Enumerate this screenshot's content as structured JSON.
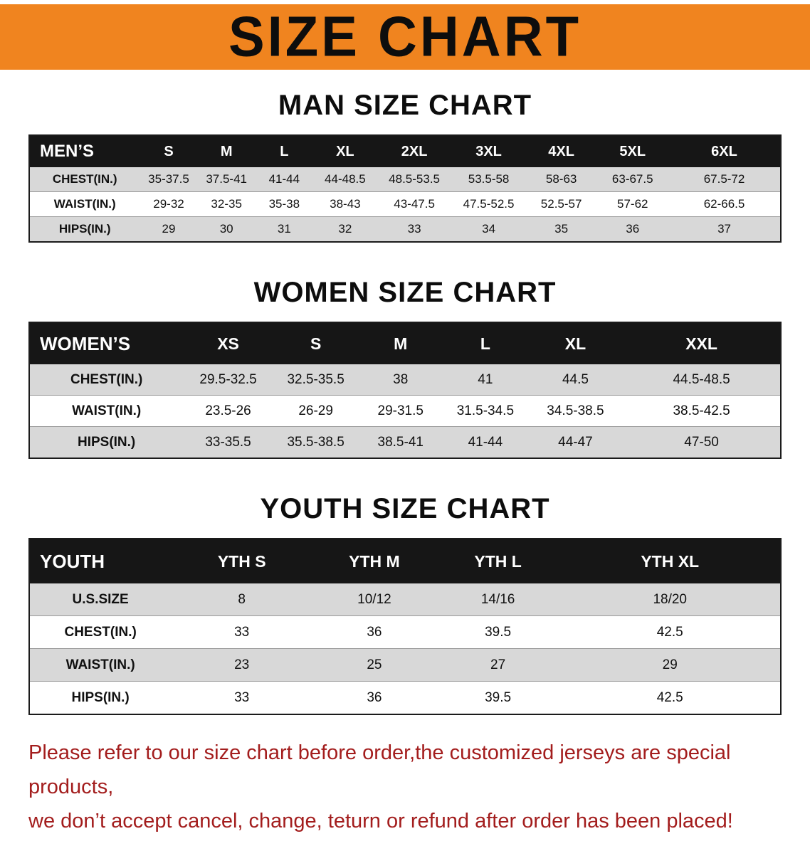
{
  "banner": {
    "title": "SIZE CHART",
    "bg_color": "#f0841f"
  },
  "sections": [
    {
      "id": "men",
      "heading": "MAN SIZE CHART",
      "table": {
        "header": [
          "MEN’S",
          "S",
          "M",
          "L",
          "XL",
          "2XL",
          "3XL",
          "4XL",
          "5XL",
          "6XL"
        ],
        "rows": [
          [
            "CHEST(IN.)",
            "35-37.5",
            "37.5-41",
            "41-44",
            "44-48.5",
            "48.5-53.5",
            "53.5-58",
            "58-63",
            "63-67.5",
            "67.5-72"
          ],
          [
            "WAIST(IN.)",
            "29-32",
            "32-35",
            "35-38",
            "38-43",
            "43-47.5",
            "47.5-52.5",
            "52.5-57",
            "57-62",
            "62-66.5"
          ],
          [
            "HIPS(IN.)",
            "29",
            "30",
            "31",
            "32",
            "33",
            "34",
            "35",
            "36",
            "37"
          ]
        ]
      }
    },
    {
      "id": "women",
      "heading": "WOMEN SIZE CHART",
      "table": {
        "header": [
          "WOMEN’S",
          "XS",
          "S",
          "M",
          "L",
          "XL",
          "XXL"
        ],
        "rows": [
          [
            "CHEST(IN.)",
            "29.5-32.5",
            "32.5-35.5",
            "38",
            "41",
            "44.5",
            "44.5-48.5"
          ],
          [
            "WAIST(IN.)",
            "23.5-26",
            "26-29",
            "29-31.5",
            "31.5-34.5",
            "34.5-38.5",
            "38.5-42.5"
          ],
          [
            "HIPS(IN.)",
            "33-35.5",
            "35.5-38.5",
            "38.5-41",
            "41-44",
            "44-47",
            "47-50"
          ]
        ]
      }
    },
    {
      "id": "youth",
      "heading": "YOUTH SIZE CHART",
      "table": {
        "header": [
          "YOUTH",
          "YTH S",
          "YTH M",
          "YTH L",
          "YTH XL"
        ],
        "rows": [
          [
            "U.S.SIZE",
            "8",
            "10/12",
            "14/16",
            "18/20"
          ],
          [
            "CHEST(IN.)",
            "33",
            "36",
            "39.5",
            "42.5"
          ],
          [
            "WAIST(IN.)",
            "23",
            "25",
            "27",
            "29"
          ],
          [
            "HIPS(IN.)",
            "33",
            "36",
            "39.5",
            "42.5"
          ]
        ]
      }
    }
  ],
  "disclaimer": {
    "line1": "Please refer to our size chart before order,the customized jerseys are special products,",
    "line2": "we don’t accept cancel, change, teturn or refund after order has been placed!",
    "color": "#a31d1d"
  }
}
